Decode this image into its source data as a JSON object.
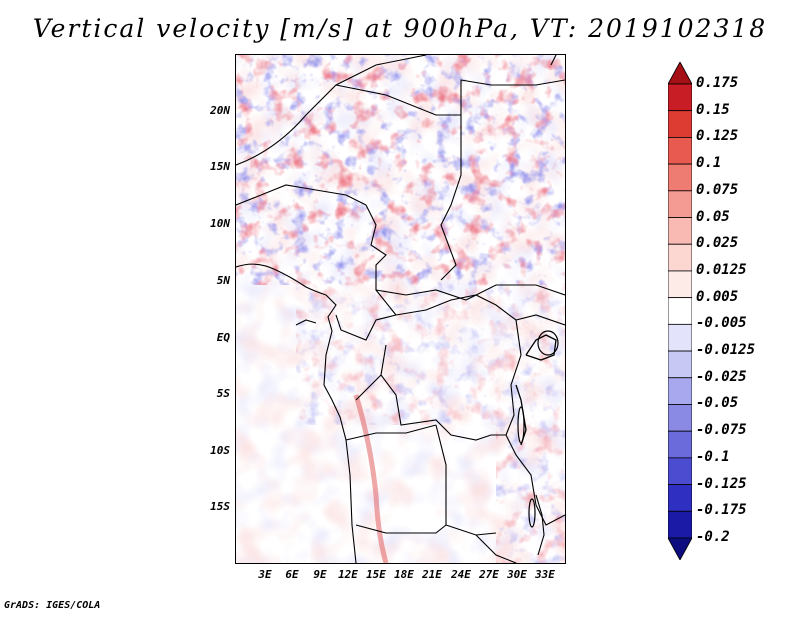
{
  "title": "Vertical velocity [m/s] at 900hPa, VT: 2019102318",
  "credit": "GrADS: IGES/COLA",
  "y_axis_labels": [
    "20N",
    "15N",
    "10N",
    "5N",
    "EQ",
    "5S",
    "10S",
    "15S"
  ],
  "x_axis_labels": [
    "3E",
    "6E",
    "9E",
    "12E",
    "15E",
    "18E",
    "21E",
    "24E",
    "27E",
    "30E",
    "33E"
  ],
  "colorbar": {
    "labels": [
      "0.175",
      "0.15",
      "0.125",
      "0.1",
      "0.075",
      "0.05",
      "0.025",
      "0.0125",
      "0.005",
      "-0.005",
      "-0.0125",
      "-0.025",
      "-0.05",
      "-0.075",
      "-0.1",
      "-0.125",
      "-0.175",
      "-0.2"
    ],
    "colors": [
      "#a50f15",
      "#c81d25",
      "#dc3c32",
      "#e85a4f",
      "#ef7c72",
      "#f49b93",
      "#f9bab3",
      "#fcd6d1",
      "#fdebe8",
      "#ffffff",
      "#e3e3fb",
      "#c8c8f5",
      "#a8a8ee",
      "#8a8ae5",
      "#6b6bdb",
      "#4c4cd0",
      "#2f2fc2",
      "#1a1aa6",
      "#0d0d80"
    ]
  },
  "map": {
    "region": "Central Africa",
    "lon_range": [
      0,
      34.5
    ],
    "lat_range": [
      -20,
      25
    ],
    "field": "vertical velocity at 900hPa"
  }
}
